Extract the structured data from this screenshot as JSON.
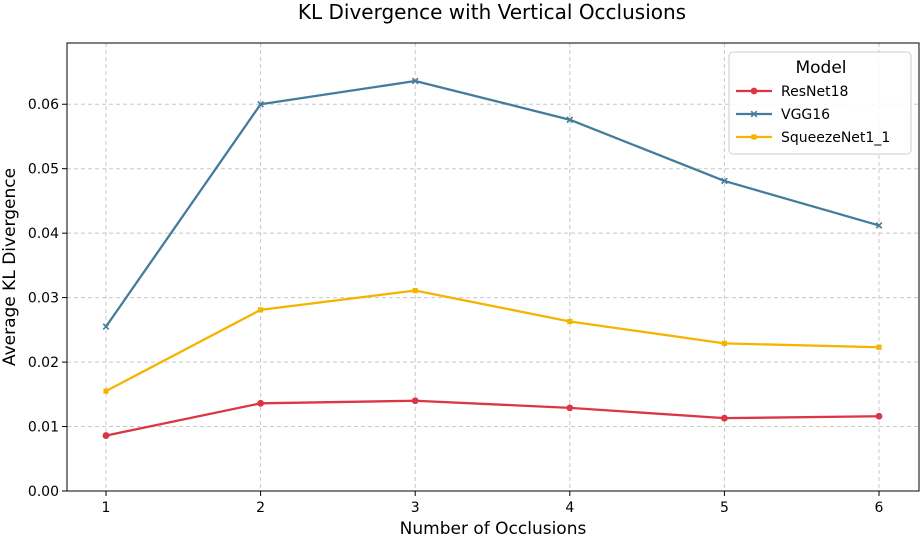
{
  "chart_data": {
    "type": "line",
    "title": "KL Divergence with Vertical Occlusions",
    "xlabel": "Number of Occlusions",
    "ylabel": "Average KL Divergence",
    "x": [
      1,
      2,
      3,
      4,
      5,
      6
    ],
    "x_ticks": [
      "1",
      "2",
      "3",
      "4",
      "5",
      "6"
    ],
    "ylim": [
      0,
      0.0695
    ],
    "y_ticks": [
      "0.00",
      "0.01",
      "0.02",
      "0.03",
      "0.04",
      "0.05",
      "0.06"
    ],
    "grid": true,
    "legend": {
      "title": "Model",
      "position": "top-right"
    },
    "series": [
      {
        "name": "ResNet18",
        "color": "#dc3545",
        "marker": "circle",
        "values": [
          0.0086,
          0.0136,
          0.014,
          0.0129,
          0.0113,
          0.0116
        ]
      },
      {
        "name": "VGG16",
        "color": "#457b9d",
        "marker": "x",
        "values": [
          0.0255,
          0.06,
          0.0636,
          0.0576,
          0.0481,
          0.0412
        ]
      },
      {
        "name": "SqueezeNet1_1",
        "color": "#f4b400",
        "marker": "square",
        "values": [
          0.0155,
          0.0281,
          0.0311,
          0.0263,
          0.0229,
          0.0223
        ]
      }
    ]
  }
}
